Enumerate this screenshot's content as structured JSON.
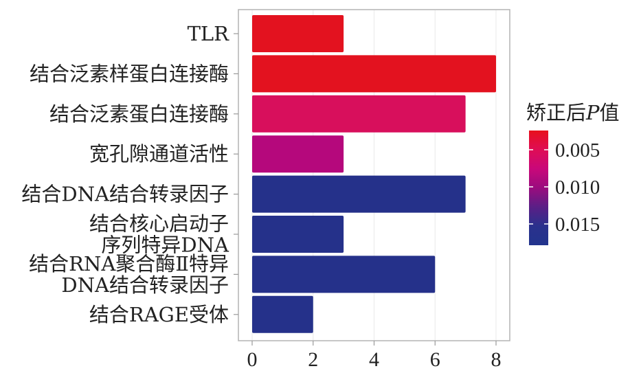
{
  "chart_data": {
    "type": "bar",
    "orientation": "horizontal",
    "title": "",
    "xlabel": "",
    "ylabel": "",
    "xlim": [
      0,
      8
    ],
    "x_ticks": [
      0,
      2,
      4,
      6,
      8
    ],
    "grid": true,
    "categories": [
      [
        "TLR"
      ],
      [
        "结合泛素样蛋白连接酶"
      ],
      [
        "结合泛素蛋白连接酶"
      ],
      [
        "宽孔隙通道活性"
      ],
      [
        "结合DNA结合转录因子"
      ],
      [
        "结合核心启动子",
        "序列特异DNA"
      ],
      [
        "结合RNA聚合酶Ⅱ特异",
        "DNA结合转录因子"
      ],
      [
        "结合RAGE受体"
      ]
    ],
    "values": [
      3,
      8,
      7,
      3,
      7,
      3,
      6,
      2
    ],
    "p_values": [
      0.004,
      0.004,
      0.008,
      0.012,
      0.017,
      0.017,
      0.017,
      0.017
    ],
    "colors": [
      "#e3121f",
      "#e3121f",
      "#d80f5c",
      "#b5087c",
      "#25318a",
      "#25318a",
      "#25318a",
      "#25318a"
    ],
    "legend": {
      "title_prefix": "矫正后",
      "title_italic": "P",
      "title_suffix": "值",
      "placement": "right",
      "ticks": [
        "0.005",
        "0.010",
        "0.015"
      ],
      "gradient": [
        "#e8101c",
        "#df0d55",
        "#c9087a",
        "#9a0c7e",
        "#5a1f86",
        "#2a318d",
        "#22348d"
      ]
    }
  }
}
